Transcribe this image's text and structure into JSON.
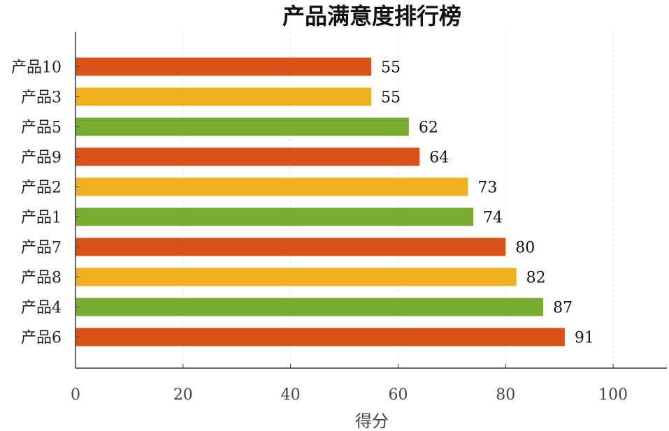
{
  "chart_data": {
    "type": "bar",
    "orientation": "horizontal",
    "title": "产品满意度排行榜",
    "xlabel": "得分",
    "ylabel": "",
    "xlim": [
      0,
      110
    ],
    "xticks": [
      0,
      20,
      40,
      60,
      80,
      100
    ],
    "xtick_labels": [
      "0",
      "20",
      "40",
      "60",
      "80",
      "100"
    ],
    "grid": "vertical-dashed-light",
    "legend": "none",
    "categories": [
      "产品10",
      "产品3",
      "产品5",
      "产品9",
      "产品2",
      "产品1",
      "产品7",
      "产品8",
      "产品4",
      "产品6"
    ],
    "values": [
      55,
      55,
      62,
      64,
      73,
      74,
      80,
      82,
      87,
      91
    ],
    "value_labels": [
      "55",
      "55",
      "62",
      "64",
      "73",
      "74",
      "80",
      "82",
      "87",
      "91"
    ],
    "bar_colors": [
      "#d95319",
      "#edb120",
      "#77ac30",
      "#d95319",
      "#edb120",
      "#77ac30",
      "#d95319",
      "#edb120",
      "#77ac30",
      "#d95319"
    ]
  }
}
